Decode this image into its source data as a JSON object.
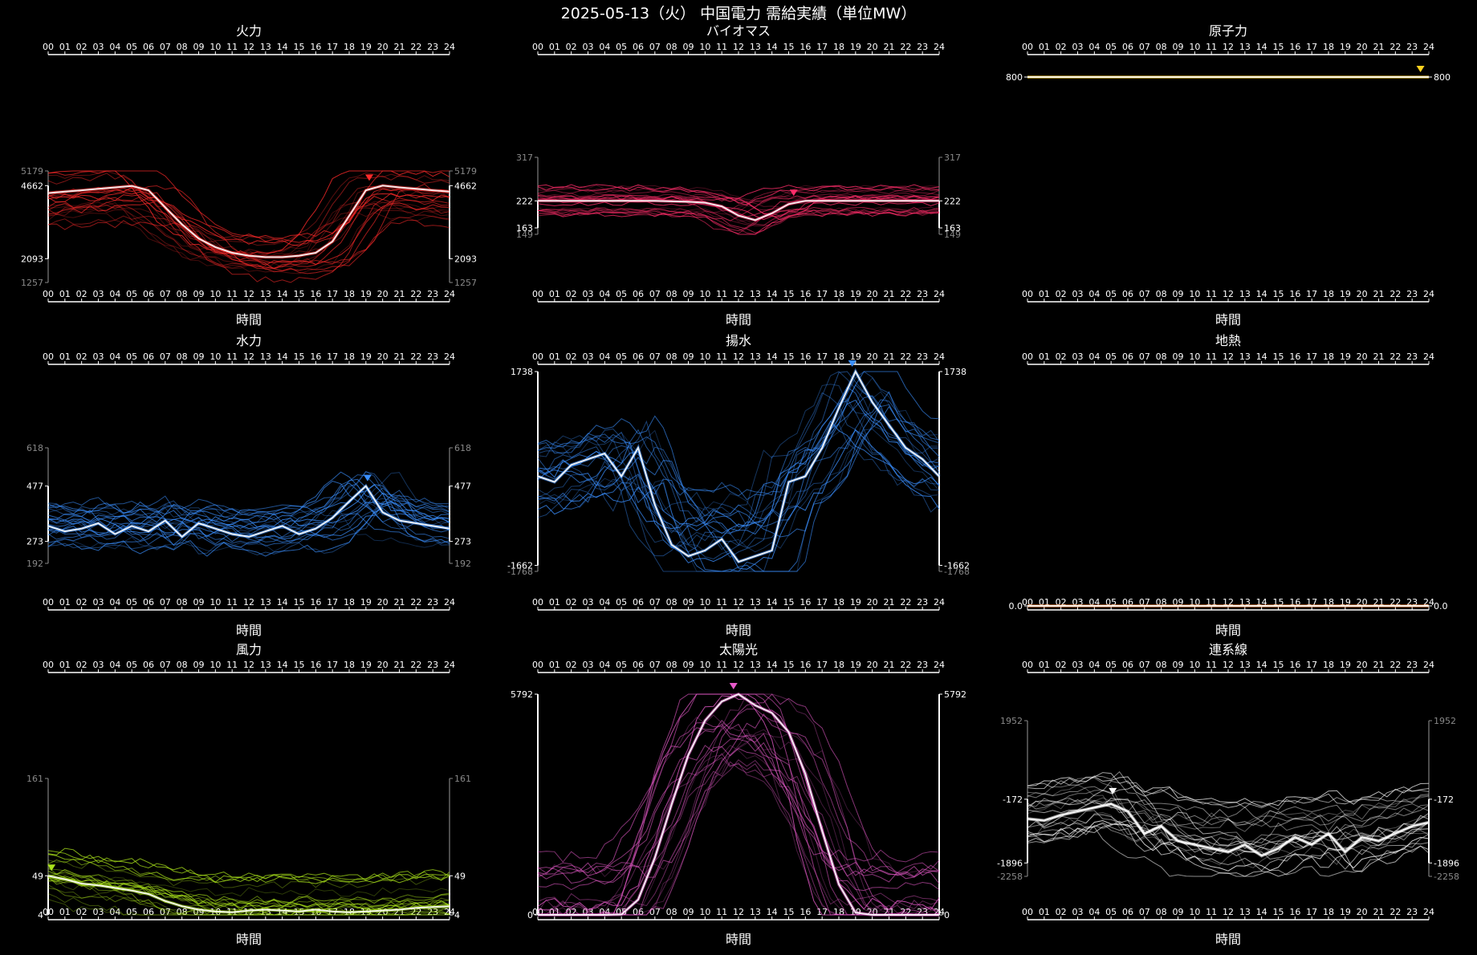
{
  "title": "2025-05-13（火） 中国電力 需給実績（単位MW）",
  "hours": [
    "00",
    "01",
    "02",
    "03",
    "04",
    "05",
    "06",
    "07",
    "08",
    "09",
    "10",
    "11",
    "12",
    "13",
    "14",
    "15",
    "16",
    "17",
    "18",
    "19",
    "20",
    "21",
    "22",
    "23",
    "24"
  ],
  "x_label": "時間",
  "chart_data": [
    {
      "type": "line",
      "title": "火力",
      "color": "#ff2a2a",
      "ylim": [
        1257,
        5179
      ],
      "y_ticks": [
        {
          "v": 5179,
          "dim": true
        },
        {
          "v": 4662
        },
        {
          "v": 2093
        },
        {
          "v": 1257,
          "dim": true
        }
      ],
      "marker": {
        "x": 19.2,
        "y": 4662
      },
      "series_today": [
        4400,
        4450,
        4500,
        4550,
        4600,
        4650,
        4500,
        3900,
        3300,
        2800,
        2500,
        2300,
        2200,
        2150,
        2150,
        2200,
        2300,
        2700,
        3600,
        4500,
        4662,
        4600,
        4550,
        4500,
        4450
      ]
    },
    {
      "type": "line",
      "title": "バイオマス",
      "color": "#ff2d6a",
      "ylim": [
        149,
        317
      ],
      "y_ticks": [
        {
          "v": 317,
          "dim": true
        },
        {
          "v": 222
        },
        {
          "v": 163
        },
        {
          "v": 149,
          "dim": true
        }
      ],
      "marker": {
        "x": 15.3,
        "y": 222
      },
      "series_today": [
        222,
        222,
        222,
        222,
        222,
        222,
        222,
        222,
        221,
        220,
        218,
        210,
        190,
        180,
        195,
        215,
        222,
        222,
        222,
        222,
        222,
        222,
        222,
        222,
        222
      ]
    },
    {
      "type": "line",
      "title": "原子力",
      "color": "#ffd21f",
      "ylim": [
        799,
        801
      ],
      "y_ticks": [
        {
          "v": 800,
          "dim": false
        }
      ],
      "y_tick_labels": [
        "800",
        "800"
      ],
      "marker": {
        "x": 23.5,
        "y": 800
      },
      "series_today": [
        800,
        800,
        800,
        800,
        800,
        800,
        800,
        800,
        800,
        800,
        800,
        800,
        800,
        800,
        800,
        800,
        800,
        800,
        800,
        800,
        800,
        800,
        800,
        800,
        800
      ]
    },
    {
      "type": "line",
      "title": "水力",
      "color": "#3a8fff",
      "ylim": [
        192,
        618
      ],
      "y_ticks": [
        {
          "v": 618,
          "dim": true
        },
        {
          "v": 477
        },
        {
          "v": 273
        },
        {
          "v": 192,
          "dim": true
        }
      ],
      "marker": {
        "x": 19.1,
        "y": 477
      },
      "series_today": [
        330,
        310,
        320,
        340,
        300,
        330,
        310,
        350,
        290,
        340,
        320,
        300,
        290,
        310,
        330,
        300,
        320,
        360,
        420,
        477,
        380,
        350,
        340,
        330,
        320
      ]
    },
    {
      "type": "line",
      "title": "揚水",
      "color": "#3a8fff",
      "ylim": [
        -1768,
        1738
      ],
      "y_ticks": [
        {
          "v": 1738
        },
        {
          "v": -1662
        },
        {
          "v": -1768,
          "dim": true
        }
      ],
      "marker": {
        "x": 18.8,
        "y": 1738
      },
      "series_today": [
        -100,
        -200,
        100,
        200,
        300,
        -100,
        400,
        -600,
        -1300,
        -1500,
        -1400,
        -1200,
        -1600,
        -1500,
        -1400,
        -200,
        -100,
        400,
        1100,
        1738,
        1200,
        800,
        400,
        200,
        -100
      ]
    },
    {
      "type": "line",
      "title": "地熱",
      "color": "#ff8a3c",
      "ylim": [
        0,
        1
      ],
      "y_ticks": [
        {
          "v": 0
        }
      ],
      "y_tick_labels": [
        "0.0",
        "0.0"
      ],
      "marker": null,
      "series_today": [
        0,
        0,
        0,
        0,
        0,
        0,
        0,
        0,
        0,
        0,
        0,
        0,
        0,
        0,
        0,
        0,
        0,
        0,
        0,
        0,
        0,
        0,
        0,
        0,
        0
      ]
    },
    {
      "type": "line",
      "title": "風力",
      "color": "#a9e21a",
      "ylim": [
        4,
        161
      ],
      "y_ticks": [
        {
          "v": 161,
          "dim": true
        },
        {
          "v": 49
        },
        {
          "v": 4
        }
      ],
      "marker": {
        "x": 0.2,
        "y": 49
      },
      "series_today": [
        49,
        45,
        40,
        38,
        35,
        32,
        28,
        20,
        14,
        10,
        8,
        7,
        9,
        10,
        9,
        8,
        10,
        8,
        7,
        8,
        9,
        10,
        12,
        13,
        14
      ]
    },
    {
      "type": "line",
      "title": "太陽光",
      "color": "#e85acb",
      "ylim": [
        0,
        5792
      ],
      "y_ticks": [
        {
          "v": 5792
        },
        {
          "v": 0
        }
      ],
      "marker": {
        "x": 11.7,
        "y": 5792
      },
      "series_today": [
        0,
        0,
        0,
        0,
        0,
        10,
        400,
        1500,
        2900,
        4200,
        5100,
        5600,
        5792,
        5500,
        5300,
        4800,
        3700,
        2200,
        800,
        60,
        0,
        0,
        0,
        0,
        0
      ]
    },
    {
      "type": "line",
      "title": "連系線",
      "color": "#ffffff",
      "ylim": [
        -2258,
        1952
      ],
      "y_ticks": [
        {
          "v": 1952,
          "dim": true
        },
        {
          "v": -172
        },
        {
          "v": -1896
        },
        {
          "v": -2258,
          "dim": true
        }
      ],
      "marker": {
        "x": 5.1,
        "y": -172
      },
      "series_today": [
        -700,
        -750,
        -600,
        -500,
        -400,
        -300,
        -500,
        -1100,
        -900,
        -1300,
        -1400,
        -1500,
        -1600,
        -1400,
        -1700,
        -1500,
        -1200,
        -1400,
        -1100,
        -1600,
        -1200,
        -1300,
        -1100,
        -900,
        -800
      ]
    }
  ]
}
